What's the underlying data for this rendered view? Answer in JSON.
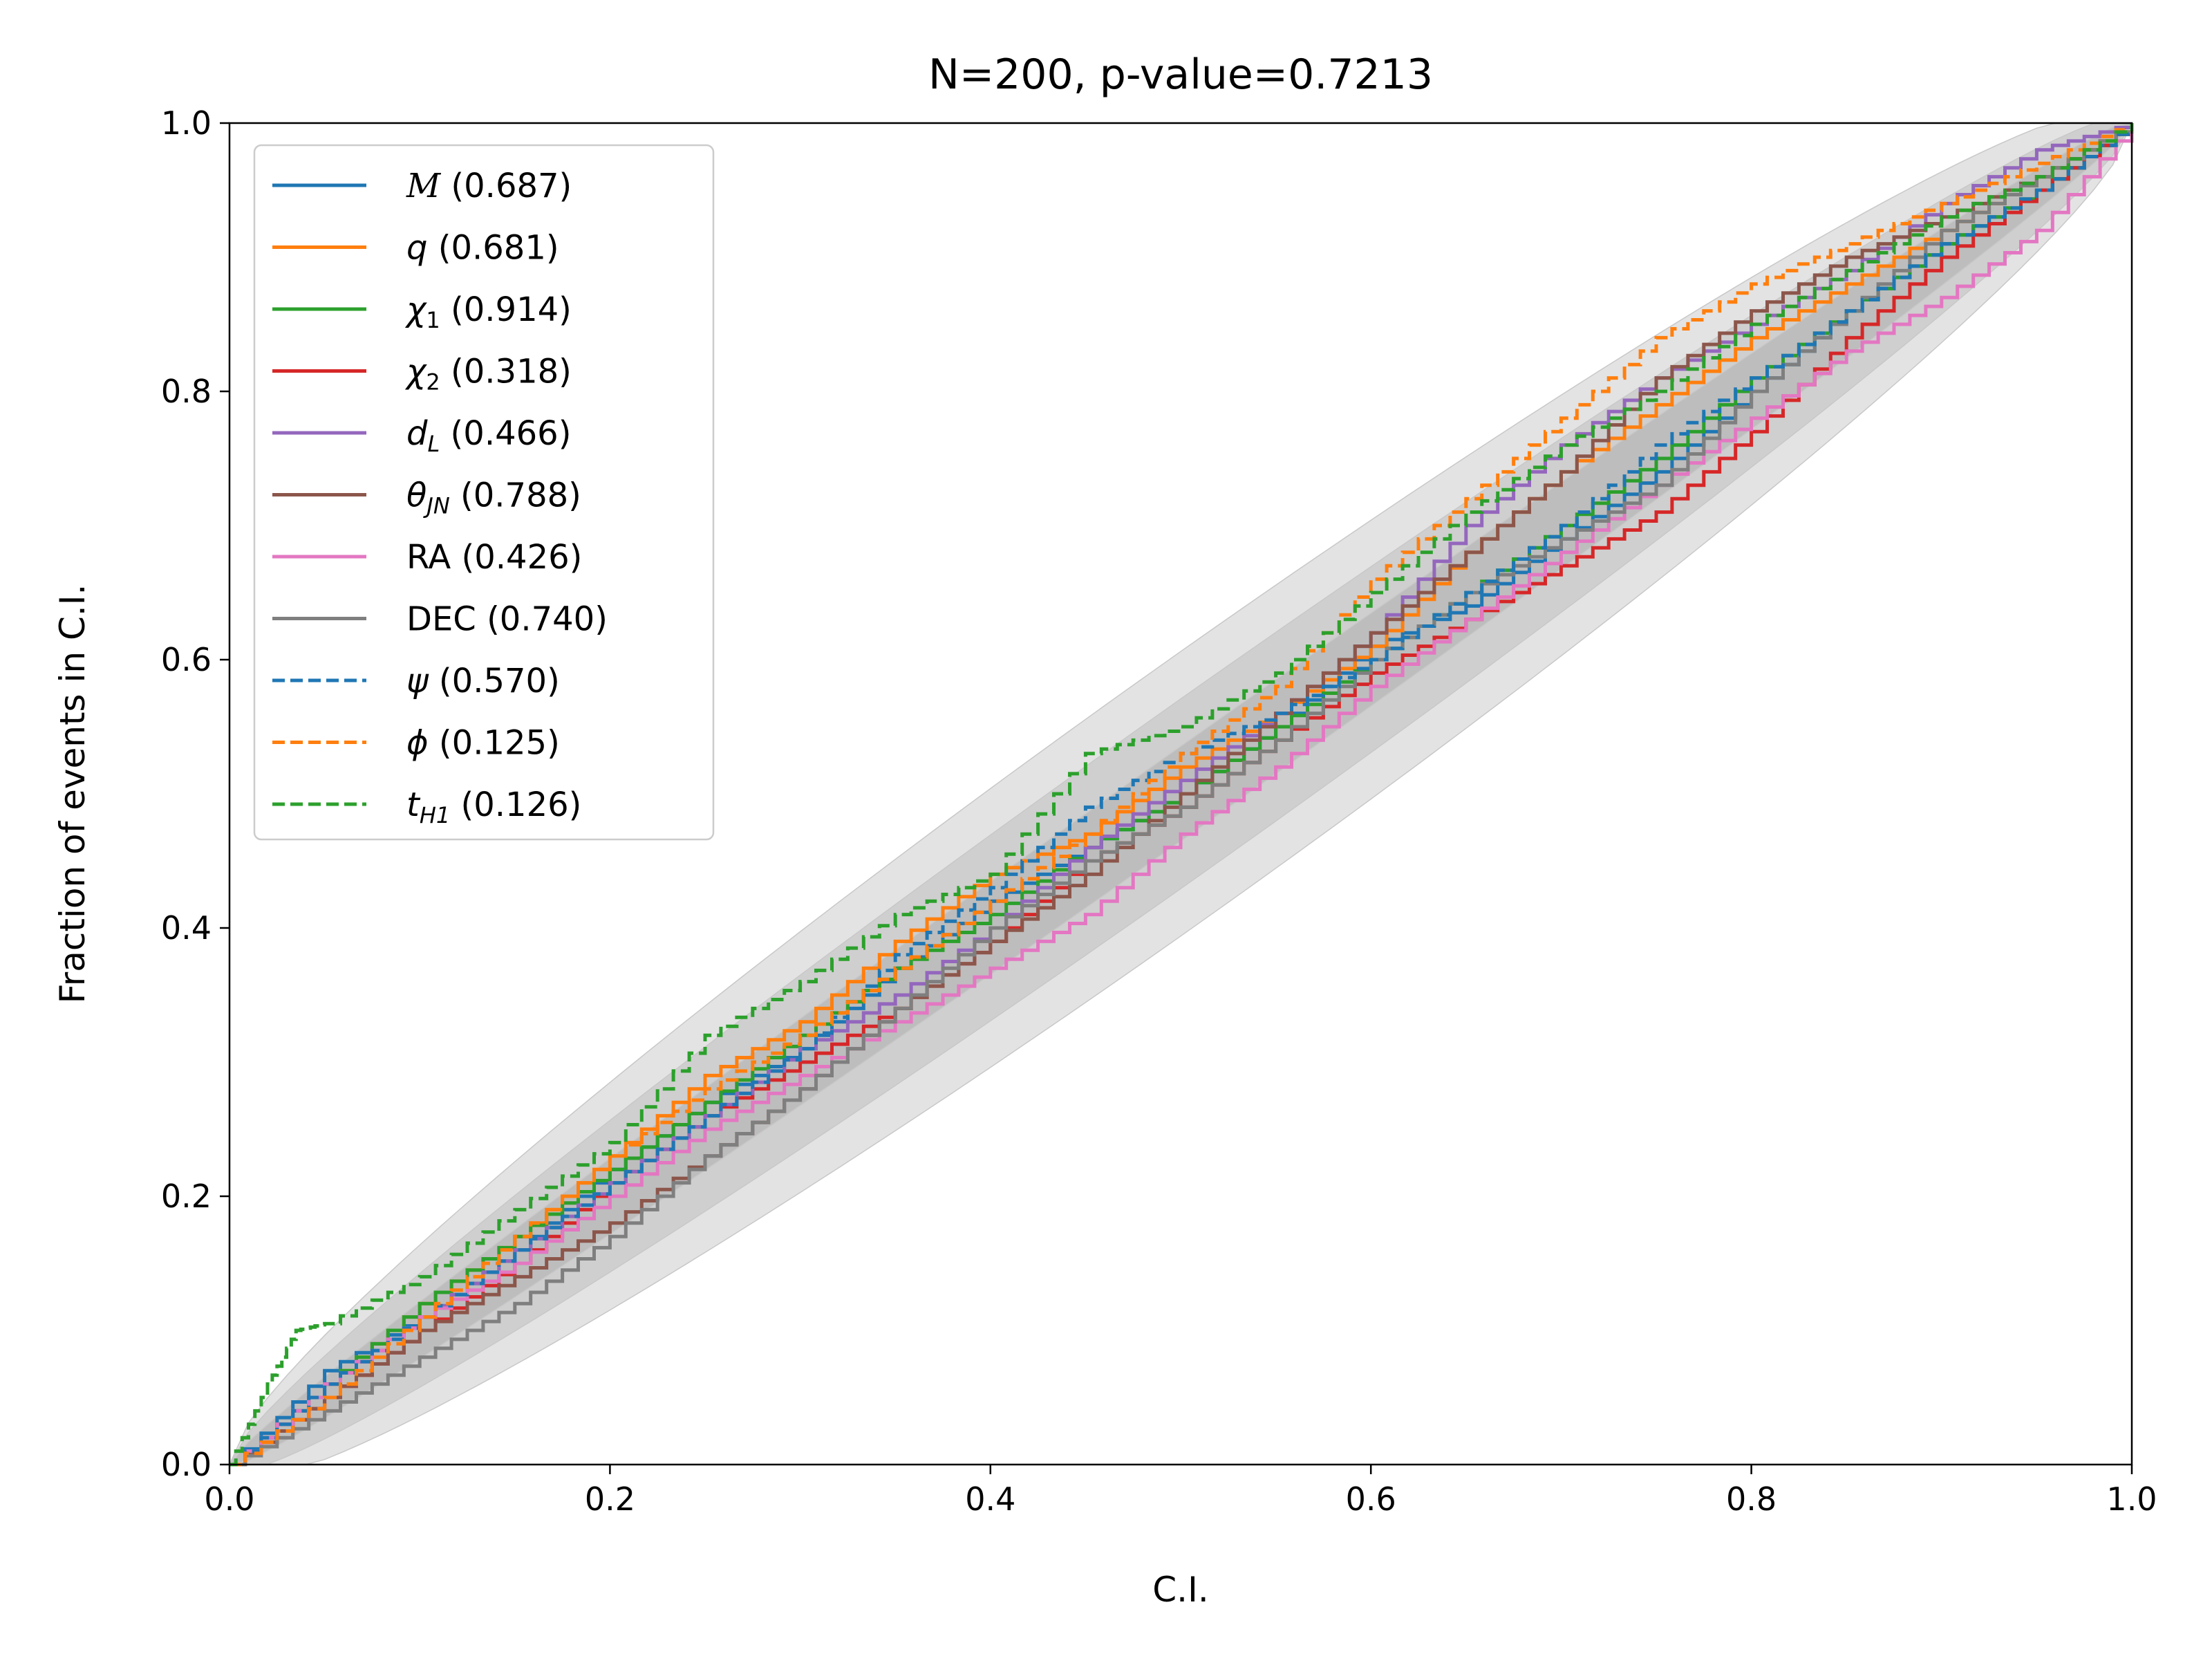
{
  "chart_data": {
    "type": "line",
    "title": "N=200, p-value=0.7213",
    "xlabel": "C.I.",
    "ylabel": "Fraction of events in C.I.",
    "xlim": [
      0,
      1
    ],
    "ylim": [
      0,
      1
    ],
    "x_ticks": [
      "0.0",
      "0.2",
      "0.4",
      "0.6",
      "0.8",
      "1.0"
    ],
    "y_ticks": [
      "0.0",
      "0.2",
      "0.4",
      "0.6",
      "0.8",
      "1.0"
    ],
    "grid": false,
    "legend_position": "top-left",
    "confidence_bands": [
      {
        "sigma": 1,
        "color": "#bdbdbd"
      },
      {
        "sigma": 2,
        "color": "#cfcfcf"
      },
      {
        "sigma": 3,
        "color": "#e3e3e3"
      }
    ],
    "series": [
      {
        "name": "M",
        "name_italic_script": true,
        "pvalue": "(0.687)",
        "color": "#1f77b4",
        "dash": "solid",
        "points": [
          [
            0,
            0
          ],
          [
            0.05,
            0.07
          ],
          [
            0.1,
            0.11
          ],
          [
            0.15,
            0.16
          ],
          [
            0.2,
            0.22
          ],
          [
            0.25,
            0.27
          ],
          [
            0.3,
            0.31
          ],
          [
            0.35,
            0.37
          ],
          [
            0.4,
            0.42
          ],
          [
            0.45,
            0.46
          ],
          [
            0.5,
            0.5
          ],
          [
            0.55,
            0.55
          ],
          [
            0.6,
            0.61
          ],
          [
            0.65,
            0.64
          ],
          [
            0.7,
            0.69
          ],
          [
            0.75,
            0.74
          ],
          [
            0.8,
            0.8
          ],
          [
            0.85,
            0.86
          ],
          [
            0.9,
            0.91
          ],
          [
            0.95,
            0.95
          ],
          [
            1,
            1
          ]
        ]
      },
      {
        "name": "q",
        "pvalue": "(0.681)",
        "color": "#ff7f0e",
        "dash": "solid",
        "points": [
          [
            0,
            0
          ],
          [
            0.05,
            0.06
          ],
          [
            0.1,
            0.12
          ],
          [
            0.15,
            0.17
          ],
          [
            0.2,
            0.23
          ],
          [
            0.25,
            0.29
          ],
          [
            0.3,
            0.33
          ],
          [
            0.35,
            0.39
          ],
          [
            0.4,
            0.44
          ],
          [
            0.45,
            0.47
          ],
          [
            0.5,
            0.52
          ],
          [
            0.55,
            0.56
          ],
          [
            0.6,
            0.61
          ],
          [
            0.65,
            0.68
          ],
          [
            0.7,
            0.74
          ],
          [
            0.75,
            0.79
          ],
          [
            0.8,
            0.84
          ],
          [
            0.85,
            0.88
          ],
          [
            0.9,
            0.92
          ],
          [
            0.95,
            0.96
          ],
          [
            1,
            1
          ]
        ]
      },
      {
        "name": "χ",
        "sub": "1",
        "pvalue": "(0.914)",
        "color": "#2ca02c",
        "dash": "solid",
        "points": [
          [
            0,
            0
          ],
          [
            0.05,
            0.06
          ],
          [
            0.1,
            0.12
          ],
          [
            0.15,
            0.17
          ],
          [
            0.2,
            0.22
          ],
          [
            0.25,
            0.27
          ],
          [
            0.3,
            0.32
          ],
          [
            0.35,
            0.37
          ],
          [
            0.4,
            0.41
          ],
          [
            0.45,
            0.46
          ],
          [
            0.5,
            0.5
          ],
          [
            0.55,
            0.55
          ],
          [
            0.6,
            0.6
          ],
          [
            0.65,
            0.65
          ],
          [
            0.7,
            0.7
          ],
          [
            0.75,
            0.75
          ],
          [
            0.8,
            0.81
          ],
          [
            0.85,
            0.86
          ],
          [
            0.9,
            0.91
          ],
          [
            0.95,
            0.95
          ],
          [
            1,
            1
          ]
        ]
      },
      {
        "name": "χ",
        "sub": "2",
        "pvalue": "(0.318)",
        "color": "#d62728",
        "dash": "solid",
        "points": [
          [
            0,
            0
          ],
          [
            0.05,
            0.05
          ],
          [
            0.1,
            0.1
          ],
          [
            0.15,
            0.15
          ],
          [
            0.2,
            0.21
          ],
          [
            0.25,
            0.26
          ],
          [
            0.3,
            0.3
          ],
          [
            0.35,
            0.34
          ],
          [
            0.4,
            0.39
          ],
          [
            0.45,
            0.45
          ],
          [
            0.5,
            0.49
          ],
          [
            0.55,
            0.54
          ],
          [
            0.6,
            0.59
          ],
          [
            0.65,
            0.63
          ],
          [
            0.7,
            0.67
          ],
          [
            0.75,
            0.71
          ],
          [
            0.8,
            0.77
          ],
          [
            0.85,
            0.84
          ],
          [
            0.9,
            0.9
          ],
          [
            0.95,
            0.95
          ],
          [
            1,
            1
          ]
        ]
      },
      {
        "name": "d",
        "sub": "L",
        "pvalue": "(0.466)",
        "color": "#9467bd",
        "dash": "solid",
        "points": [
          [
            0,
            0
          ],
          [
            0.05,
            0.06
          ],
          [
            0.1,
            0.11
          ],
          [
            0.15,
            0.16
          ],
          [
            0.2,
            0.21
          ],
          [
            0.25,
            0.26
          ],
          [
            0.3,
            0.31
          ],
          [
            0.35,
            0.35
          ],
          [
            0.4,
            0.4
          ],
          [
            0.45,
            0.46
          ],
          [
            0.5,
            0.51
          ],
          [
            0.55,
            0.56
          ],
          [
            0.6,
            0.62
          ],
          [
            0.65,
            0.7
          ],
          [
            0.7,
            0.76
          ],
          [
            0.75,
            0.81
          ],
          [
            0.8,
            0.85
          ],
          [
            0.85,
            0.89
          ],
          [
            0.9,
            0.94
          ],
          [
            0.95,
            0.98
          ],
          [
            1,
            1
          ]
        ]
      },
      {
        "name": "θ",
        "sub": "JN",
        "pvalue": "(0.788)",
        "color": "#8c564b",
        "dash": "solid",
        "points": [
          [
            0,
            0
          ],
          [
            0.05,
            0.05
          ],
          [
            0.1,
            0.1
          ],
          [
            0.15,
            0.14
          ],
          [
            0.2,
            0.18
          ],
          [
            0.25,
            0.23
          ],
          [
            0.3,
            0.28
          ],
          [
            0.35,
            0.34
          ],
          [
            0.4,
            0.39
          ],
          [
            0.45,
            0.44
          ],
          [
            0.5,
            0.5
          ],
          [
            0.55,
            0.56
          ],
          [
            0.6,
            0.62
          ],
          [
            0.65,
            0.68
          ],
          [
            0.7,
            0.74
          ],
          [
            0.75,
            0.81
          ],
          [
            0.8,
            0.86
          ],
          [
            0.85,
            0.9
          ],
          [
            0.9,
            0.93
          ],
          [
            0.95,
            0.96
          ],
          [
            1,
            1
          ]
        ]
      },
      {
        "name": "RA",
        "pvalue": "(0.426)",
        "color": "#e377c2",
        "dash": "solid",
        "points": [
          [
            0,
            0
          ],
          [
            0.05,
            0.06
          ],
          [
            0.1,
            0.11
          ],
          [
            0.15,
            0.15
          ],
          [
            0.2,
            0.2
          ],
          [
            0.25,
            0.25
          ],
          [
            0.3,
            0.29
          ],
          [
            0.35,
            0.33
          ],
          [
            0.4,
            0.37
          ],
          [
            0.45,
            0.41
          ],
          [
            0.5,
            0.47
          ],
          [
            0.55,
            0.52
          ],
          [
            0.6,
            0.58
          ],
          [
            0.65,
            0.63
          ],
          [
            0.7,
            0.68
          ],
          [
            0.75,
            0.73
          ],
          [
            0.8,
            0.78
          ],
          [
            0.85,
            0.83
          ],
          [
            0.9,
            0.87
          ],
          [
            0.95,
            0.92
          ],
          [
            1,
            1
          ]
        ]
      },
      {
        "name": "DEC",
        "pvalue": "(0.740)",
        "color": "#7f7f7f",
        "dash": "solid",
        "points": [
          [
            0,
            0
          ],
          [
            0.05,
            0.04
          ],
          [
            0.1,
            0.08
          ],
          [
            0.15,
            0.12
          ],
          [
            0.2,
            0.17
          ],
          [
            0.25,
            0.23
          ],
          [
            0.3,
            0.28
          ],
          [
            0.35,
            0.34
          ],
          [
            0.4,
            0.4
          ],
          [
            0.45,
            0.45
          ],
          [
            0.5,
            0.49
          ],
          [
            0.55,
            0.54
          ],
          [
            0.6,
            0.6
          ],
          [
            0.65,
            0.65
          ],
          [
            0.7,
            0.69
          ],
          [
            0.75,
            0.73
          ],
          [
            0.8,
            0.8
          ],
          [
            0.85,
            0.86
          ],
          [
            0.9,
            0.92
          ],
          [
            0.95,
            0.96
          ],
          [
            1,
            1
          ]
        ]
      },
      {
        "name": "ψ",
        "pvalue": "(0.570)",
        "color": "#1f77b4",
        "dash": "dashed",
        "points": [
          [
            0,
            0
          ],
          [
            0.05,
            0.06
          ],
          [
            0.1,
            0.11
          ],
          [
            0.15,
            0.16
          ],
          [
            0.2,
            0.21
          ],
          [
            0.25,
            0.26
          ],
          [
            0.3,
            0.31
          ],
          [
            0.35,
            0.38
          ],
          [
            0.4,
            0.43
          ],
          [
            0.45,
            0.49
          ],
          [
            0.5,
            0.53
          ],
          [
            0.55,
            0.56
          ],
          [
            0.6,
            0.6
          ],
          [
            0.65,
            0.65
          ],
          [
            0.7,
            0.7
          ],
          [
            0.75,
            0.76
          ],
          [
            0.8,
            0.81
          ],
          [
            0.85,
            0.86
          ],
          [
            0.9,
            0.91
          ],
          [
            0.95,
            0.95
          ],
          [
            1,
            1
          ]
        ]
      },
      {
        "name": "ϕ",
        "pvalue": "(0.125)",
        "color": "#ff7f0e",
        "dash": "dashed",
        "points": [
          [
            0,
            0
          ],
          [
            0.05,
            0.05
          ],
          [
            0.1,
            0.11
          ],
          [
            0.15,
            0.17
          ],
          [
            0.2,
            0.23
          ],
          [
            0.25,
            0.28
          ],
          [
            0.3,
            0.32
          ],
          [
            0.35,
            0.37
          ],
          [
            0.4,
            0.42
          ],
          [
            0.45,
            0.47
          ],
          [
            0.5,
            0.53
          ],
          [
            0.55,
            0.58
          ],
          [
            0.6,
            0.66
          ],
          [
            0.65,
            0.72
          ],
          [
            0.7,
            0.78
          ],
          [
            0.75,
            0.84
          ],
          [
            0.8,
            0.88
          ],
          [
            0.85,
            0.91
          ],
          [
            0.9,
            0.94
          ],
          [
            0.95,
            0.97
          ],
          [
            1,
            1
          ]
        ]
      },
      {
        "name": "t",
        "sub": "H1",
        "pvalue": "(0.126)",
        "color": "#2ca02c",
        "dash": "dashed",
        "points": [
          [
            0,
            0
          ],
          [
            0.02,
            0.06
          ],
          [
            0.035,
            0.1
          ],
          [
            0.05,
            0.105
          ],
          [
            0.1,
            0.14
          ],
          [
            0.15,
            0.19
          ],
          [
            0.2,
            0.24
          ],
          [
            0.25,
            0.32
          ],
          [
            0.3,
            0.36
          ],
          [
            0.35,
            0.41
          ],
          [
            0.4,
            0.44
          ],
          [
            0.45,
            0.53
          ],
          [
            0.5,
            0.55
          ],
          [
            0.55,
            0.59
          ],
          [
            0.6,
            0.65
          ],
          [
            0.65,
            0.71
          ],
          [
            0.7,
            0.76
          ],
          [
            0.75,
            0.8
          ],
          [
            0.8,
            0.85
          ],
          [
            0.85,
            0.89
          ],
          [
            0.9,
            0.93
          ],
          [
            0.95,
            0.96
          ],
          [
            1,
            1
          ]
        ]
      }
    ]
  }
}
